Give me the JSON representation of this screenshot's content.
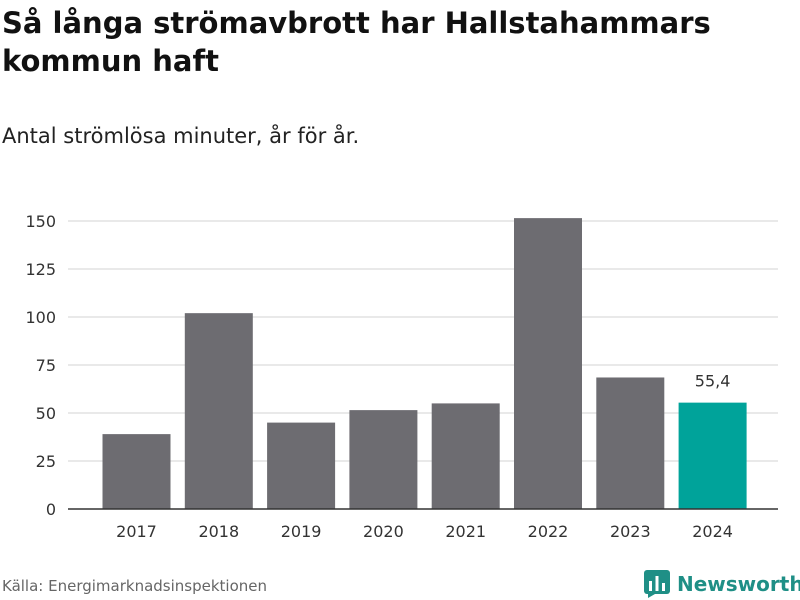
{
  "header": {
    "title": "Så långa strömavbrott har Hallstahammars kommun haft",
    "subtitle": "Antal strömlösa minuter, år för år."
  },
  "chart_data": {
    "type": "bar",
    "categories": [
      "2017",
      "2018",
      "2019",
      "2020",
      "2021",
      "2022",
      "2023",
      "2024"
    ],
    "values": [
      39,
      102,
      45,
      51.5,
      55,
      151.5,
      68.5,
      55.4
    ],
    "highlight_index": 7,
    "data_labels": [
      {
        "index": 7,
        "text": "55,4"
      }
    ],
    "y_ticks": [
      0,
      25,
      50,
      75,
      100,
      125,
      150
    ],
    "ylim": [
      0,
      150
    ],
    "grid": true,
    "xlabel": "",
    "ylabel": "",
    "colors": {
      "bar": "#6d6c71",
      "highlight": "#00a39a",
      "grid": "#dcdcdc",
      "axis": "#333333"
    }
  },
  "footer": {
    "source": "Källa: Energimarknadsinspektionen",
    "brand": "Newsworthy",
    "logo_icon": "bar-chart-logo-icon"
  }
}
